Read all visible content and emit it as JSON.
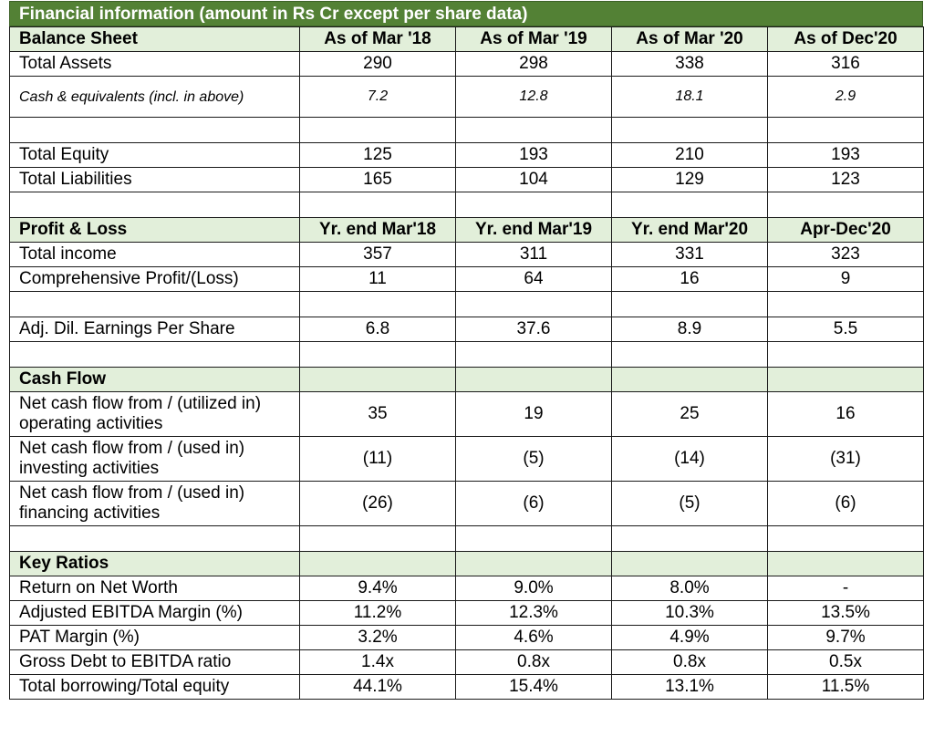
{
  "title": "Financial information (amount in Rs Cr except per share data)",
  "colors": {
    "title_bg": "#538135",
    "header_bg": "#e2efda",
    "border": "#1a1a1a"
  },
  "balance_sheet": {
    "header": [
      "Balance Sheet",
      "As of Mar '18",
      "As of Mar '19",
      "As of Mar '20",
      "As of Dec'20"
    ],
    "rows": [
      {
        "label": "Total Assets",
        "values": [
          "290",
          "298",
          "338",
          "316"
        ]
      },
      {
        "label": "Cash & equivalents (incl. in above)",
        "values": [
          "7.2",
          "12.8",
          "18.1",
          "2.9"
        ]
      },
      {
        "label": "Total Equity",
        "values": [
          "125",
          "193",
          "210",
          "193"
        ]
      },
      {
        "label": "Total Liabilities",
        "values": [
          "165",
          "104",
          "129",
          "123"
        ]
      }
    ]
  },
  "profit_loss": {
    "header": [
      "Profit & Loss",
      "Yr. end Mar'18",
      "Yr. end Mar'19",
      "Yr. end Mar'20",
      "Apr-Dec'20"
    ],
    "rows": [
      {
        "label": "Total income",
        "values": [
          "357",
          "311",
          "331",
          "323"
        ]
      },
      {
        "label": "Comprehensive Profit/(Loss)",
        "values": [
          "11",
          "64",
          "16",
          "9"
        ]
      },
      {
        "label": "Adj. Dil. Earnings Per Share",
        "values": [
          "6.8",
          "37.6",
          "8.9",
          "5.5"
        ]
      }
    ]
  },
  "cash_flow": {
    "header": "Cash Flow",
    "rows": [
      {
        "label": "Net cash flow from / (utilized in) operating activities",
        "values": [
          "35",
          "19",
          "25",
          "16"
        ]
      },
      {
        "label": "Net cash flow from / (used in) investing activities",
        "values": [
          "(11)",
          "(5)",
          "(14)",
          "(31)"
        ]
      },
      {
        "label": "Net cash flow from / (used in) financing activities",
        "values": [
          "(26)",
          "(6)",
          "(5)",
          "(6)"
        ]
      }
    ]
  },
  "key_ratios": {
    "header": "Key Ratios",
    "rows": [
      {
        "label": "Return on Net Worth",
        "values": [
          "9.4%",
          "9.0%",
          "8.0%",
          "-"
        ]
      },
      {
        "label": "Adjusted EBITDA Margin (%)",
        "values": [
          "11.2%",
          "12.3%",
          "10.3%",
          "13.5%"
        ]
      },
      {
        "label": "PAT Margin (%)",
        "values": [
          "3.2%",
          "4.6%",
          "4.9%",
          "9.7%"
        ]
      },
      {
        "label": "Gross Debt to EBITDA ratio",
        "values": [
          "1.4x",
          "0.8x",
          "0.8x",
          "0.5x"
        ]
      },
      {
        "label": "Total borrowing/Total equity",
        "values": [
          "44.1%",
          "15.4%",
          "13.1%",
          "11.5%"
        ]
      }
    ]
  }
}
